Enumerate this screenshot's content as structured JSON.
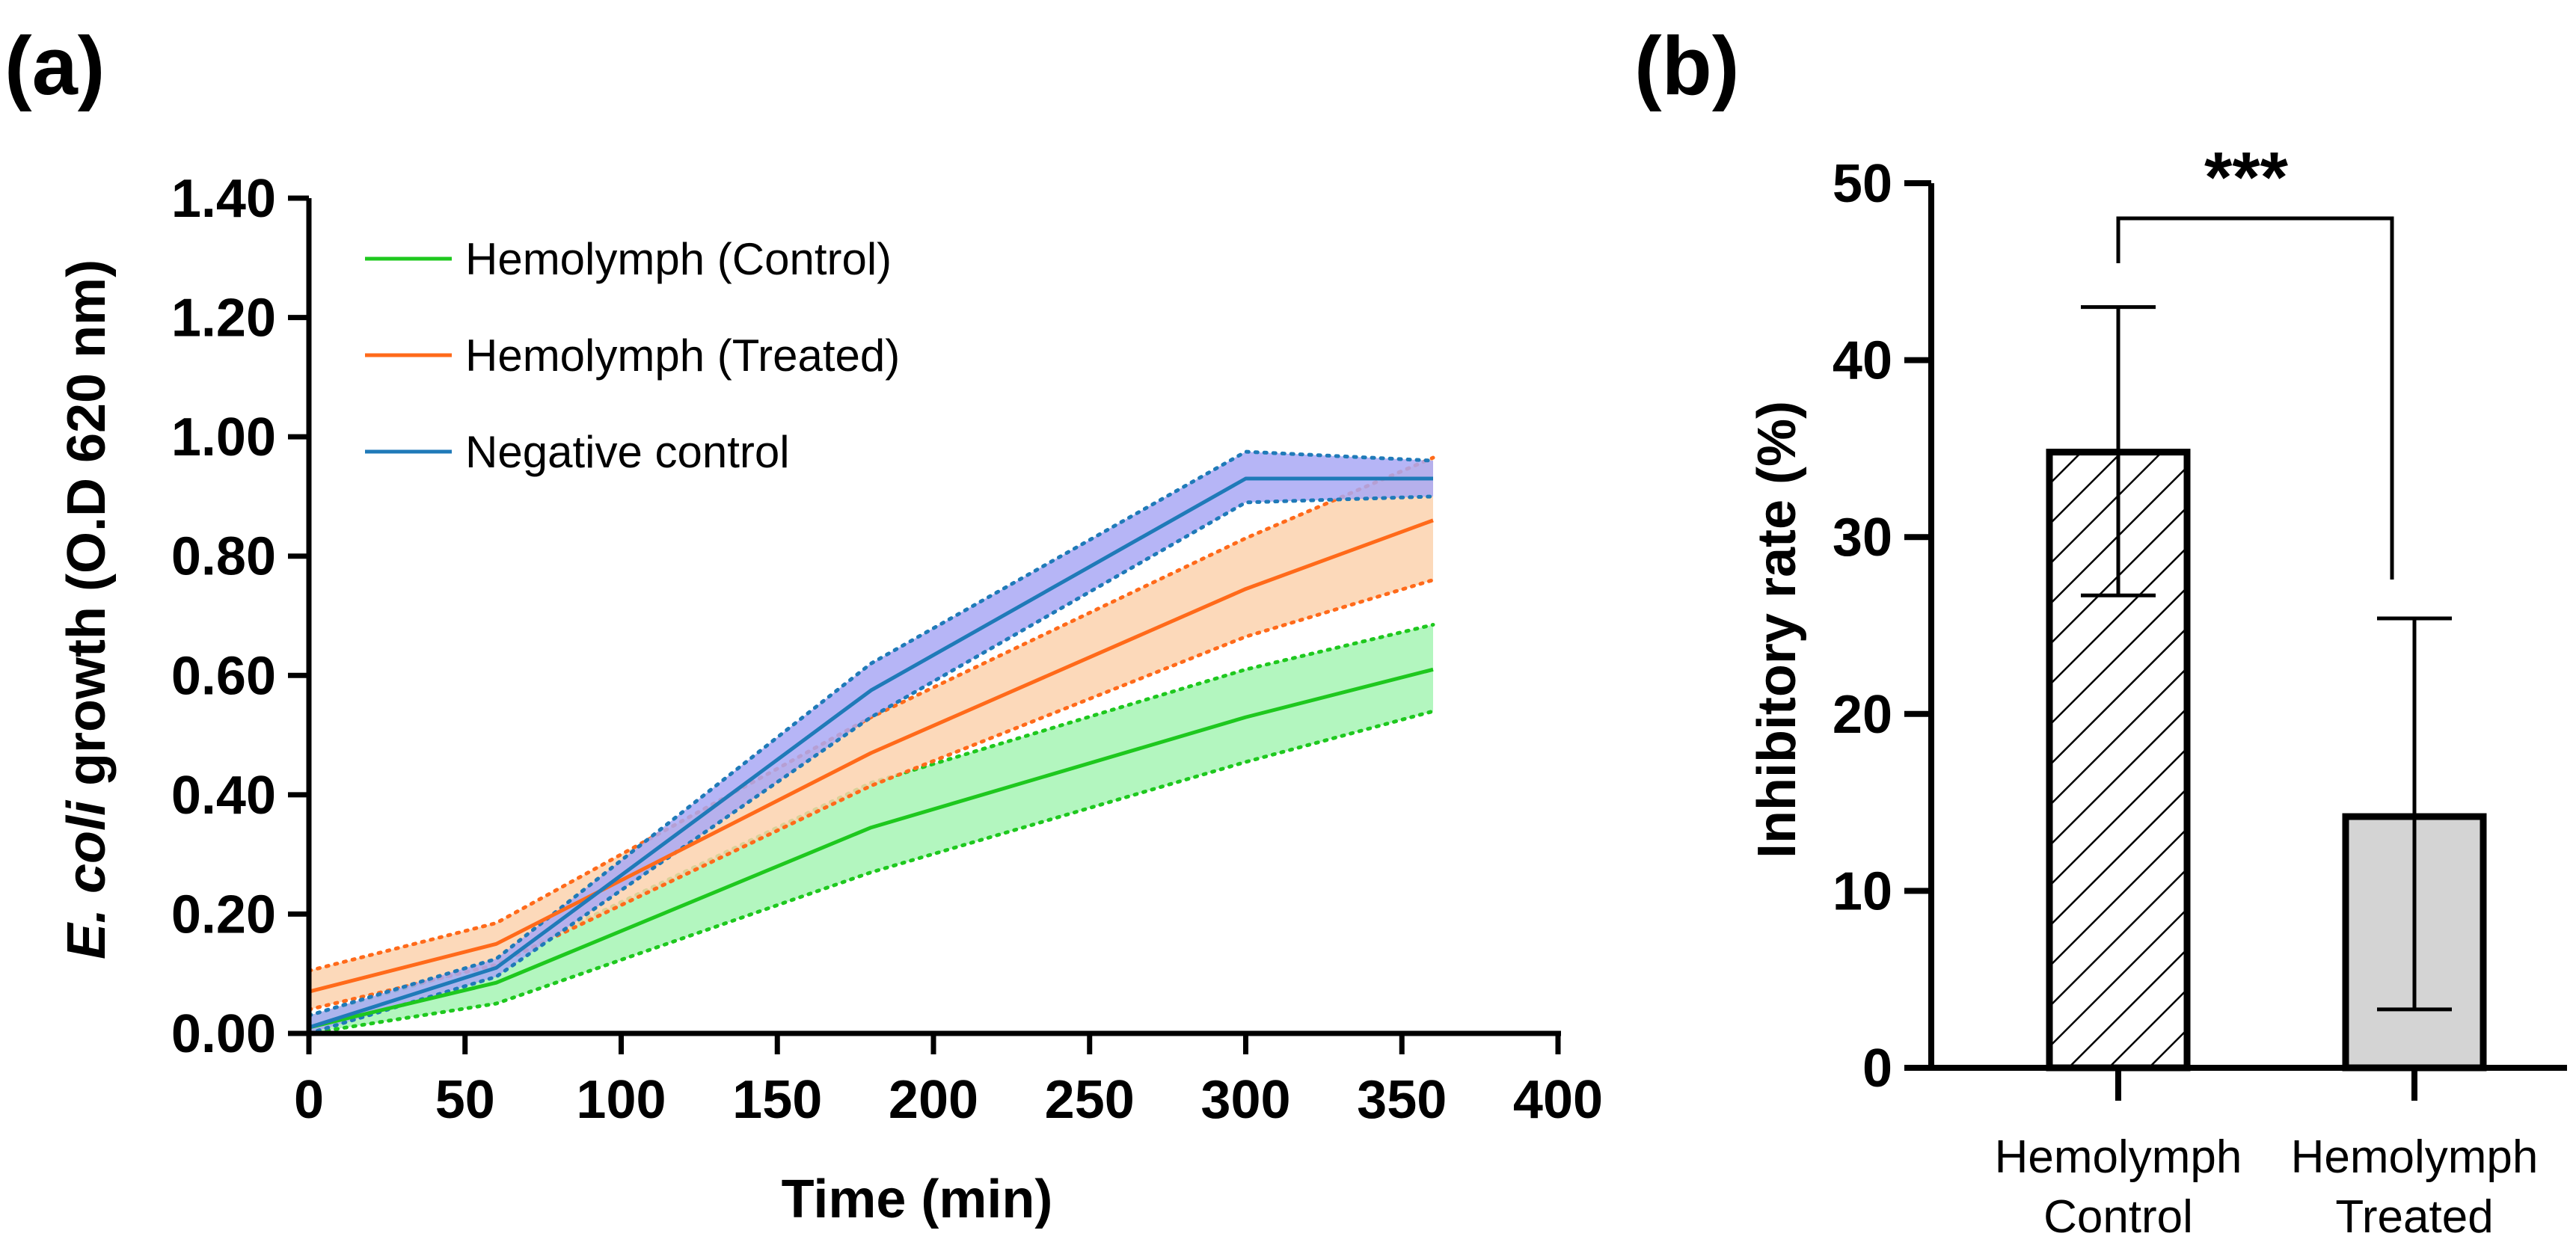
{
  "panel_labels": {
    "a": "(a)",
    "b": "(b)"
  },
  "chart_data": [
    {
      "type": "line",
      "xlabel": "Time (min)",
      "ylabel_italic": "E. coli",
      "ylabel_rest": " growth (O.D 620 nm)",
      "xlim": [
        0,
        400
      ],
      "ylim": [
        0,
        1.4
      ],
      "xticks": [
        "0",
        "50",
        "100",
        "150",
        "200",
        "250",
        "300",
        "350",
        "400"
      ],
      "yticks": [
        "0.00",
        "0.20",
        "0.40",
        "0.60",
        "0.80",
        "1.00",
        "1.20",
        "1.40"
      ],
      "legend_position": "top-left",
      "series": [
        {
          "name": "Hemolymph (Control)",
          "color": "#1ec81e",
          "band_fill": "#a6f5b4",
          "x": [
            0,
            60,
            180,
            300,
            360
          ],
          "values": [
            0.01,
            0.085,
            0.345,
            0.53,
            0.61
          ],
          "upper": [
            0.03,
            0.12,
            0.42,
            0.61,
            0.685
          ],
          "lower": [
            0.0,
            0.05,
            0.27,
            0.455,
            0.54
          ]
        },
        {
          "name": "Hemolymph (Treated)",
          "color": "#ff6a1a",
          "band_fill": "#fbd2ae",
          "x": [
            0,
            60,
            180,
            300,
            360
          ],
          "values": [
            0.07,
            0.15,
            0.47,
            0.745,
            0.86
          ],
          "upper": [
            0.105,
            0.185,
            0.53,
            0.83,
            0.965
          ],
          "lower": [
            0.04,
            0.115,
            0.415,
            0.665,
            0.76
          ]
        },
        {
          "name": "Negative control",
          "color": "#1f7ab8",
          "band_fill": "#a9a8f5",
          "x": [
            0,
            60,
            180,
            300,
            360
          ],
          "values": [
            0.01,
            0.11,
            0.575,
            0.93,
            0.93
          ],
          "upper": [
            0.03,
            0.125,
            0.62,
            0.975,
            0.96
          ],
          "lower": [
            0.0,
            0.095,
            0.53,
            0.89,
            0.9
          ]
        }
      ]
    },
    {
      "type": "bar",
      "ylabel": "Inhibitory rate (%)",
      "ylim": [
        0,
        50
      ],
      "yticks": [
        "0",
        "10",
        "20",
        "30",
        "40",
        "50"
      ],
      "categories": [
        {
          "line1": "Hemolymph",
          "line2": "Control"
        },
        {
          "line1": "Hemolymph",
          "line2": "Treated"
        }
      ],
      "values": [
        34.8,
        14.2
      ],
      "error_upper": [
        43.0,
        25.4
      ],
      "error_lower": [
        26.7,
        3.3
      ],
      "bar_fills": [
        "hatch",
        "#d4d4d4"
      ],
      "significance": "***"
    }
  ]
}
